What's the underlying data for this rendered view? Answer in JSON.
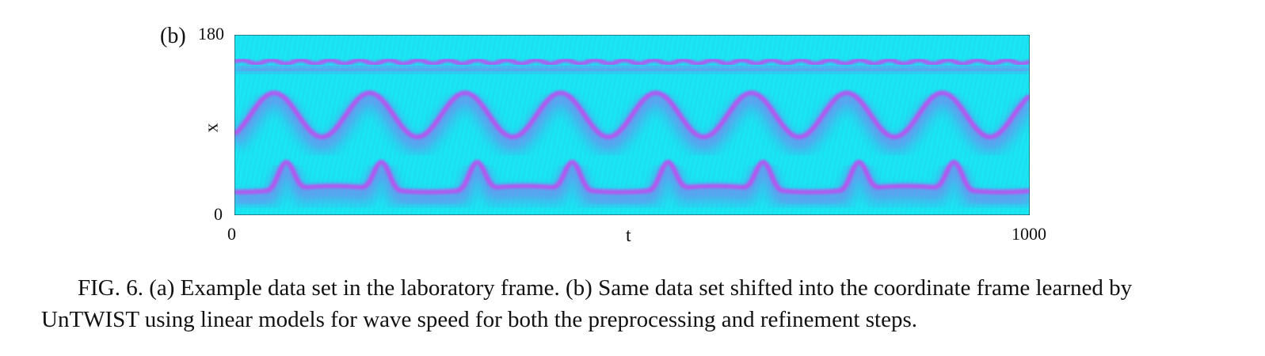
{
  "figure": {
    "panel_label": "(b)",
    "caption": "FIG. 6.  (a) Example data set in the laboratory frame. (b) Same data set shifted into the coordinate frame learned by UnTWIST using linear models for wave speed for both the preprocessing and refinement steps."
  },
  "chart_data": {
    "type": "heatmap",
    "title": "",
    "xlabel": "t",
    "ylabel": "x",
    "xlim": [
      0,
      1000
    ],
    "ylim": [
      0,
      180
    ],
    "xticks": [
      "0",
      "1000"
    ],
    "yticks": [
      "0",
      "180"
    ],
    "colors": {
      "background": "#19e6f2",
      "ridge": "#c04cf0",
      "trough": "#38c2ee"
    },
    "ridges": [
      {
        "name": "upper",
        "shape": "flat",
        "mean_x": 153,
        "amplitude": 2,
        "period": 120
      },
      {
        "name": "middle",
        "shape": "wave",
        "mean_x": 100,
        "amplitude": 22,
        "period": 120,
        "phase_t": 50
      },
      {
        "name": "lower",
        "shape": "spiky",
        "mean_x": 35,
        "amplitude": 30,
        "period": 120,
        "phase_t": 65
      }
    ]
  }
}
